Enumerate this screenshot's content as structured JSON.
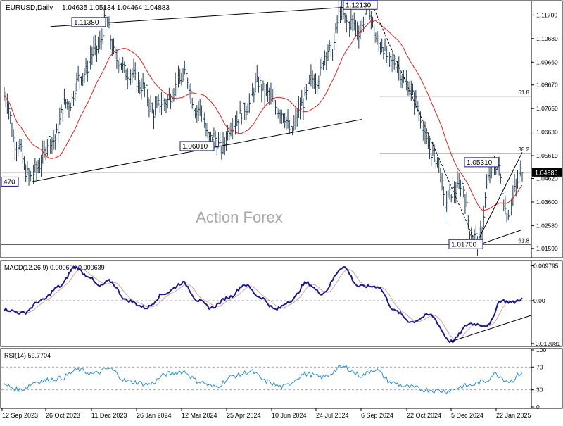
{
  "chart_data": {
    "type": "line",
    "symbol": "EURUSD",
    "timeframe": "Daily",
    "ohlc_header": [
      "1.04635",
      "1.05134",
      "1.04464",
      "1.04883"
    ],
    "watermark": "Action Forex",
    "x_labels": [
      "12 Sep 2023",
      "26 Oct 2023",
      "11 Dec 2023",
      "26 Jan 2024",
      "12 Mar 2024",
      "25 Apr 2024",
      "10 Jun 2024",
      "24 Jul 2024",
      "6 Sep 2024",
      "22 Oct 2024",
      "5 Dec 2024",
      "22 Jan 2025"
    ],
    "price_axis": {
      "ylim": [
        1.0128,
        1.1223
      ],
      "ticks": [
        "1.11700",
        "1.10680",
        "1.09660",
        "1.08670",
        "1.07650",
        "1.06630",
        "1.05610",
        "1.04620",
        "1.03600",
        "1.02580",
        "1.01590"
      ],
      "current_price": "1.04883"
    },
    "price_anchors": [
      {
        "i": 0,
        "v": 1.082
      },
      {
        "i": 8,
        "v": 1.062
      },
      {
        "i": 14,
        "v": 1.05
      },
      {
        "i": 18,
        "v": 1.047
      },
      {
        "i": 30,
        "v": 1.062
      },
      {
        "i": 42,
        "v": 1.08
      },
      {
        "i": 52,
        "v": 1.093
      },
      {
        "i": 62,
        "v": 1.105
      },
      {
        "i": 66,
        "v": 1.1138
      },
      {
        "i": 74,
        "v": 1.096
      },
      {
        "i": 86,
        "v": 1.089
      },
      {
        "i": 98,
        "v": 1.076
      },
      {
        "i": 108,
        "v": 1.082
      },
      {
        "i": 116,
        "v": 1.091
      },
      {
        "i": 126,
        "v": 1.076
      },
      {
        "i": 134,
        "v": 1.064
      },
      {
        "i": 140,
        "v": 1.0601
      },
      {
        "i": 152,
        "v": 1.073
      },
      {
        "i": 166,
        "v": 1.087
      },
      {
        "i": 176,
        "v": 1.078
      },
      {
        "i": 186,
        "v": 1.068
      },
      {
        "i": 200,
        "v": 1.088
      },
      {
        "i": 212,
        "v": 1.102
      },
      {
        "i": 218,
        "v": 1.117
      },
      {
        "i": 230,
        "v": 1.111
      },
      {
        "i": 236,
        "v": 1.119
      },
      {
        "i": 244,
        "v": 1.103
      },
      {
        "i": 254,
        "v": 1.095
      },
      {
        "i": 266,
        "v": 1.082
      },
      {
        "i": 274,
        "v": 1.062
      },
      {
        "i": 282,
        "v": 1.052
      },
      {
        "i": 286,
        "v": 1.036
      },
      {
        "i": 296,
        "v": 1.044
      },
      {
        "i": 304,
        "v": 1.0215
      },
      {
        "i": 308,
        "v": 1.018
      },
      {
        "i": 314,
        "v": 1.046
      },
      {
        "i": 320,
        "v": 1.0531
      },
      {
        "i": 326,
        "v": 1.03
      },
      {
        "i": 332,
        "v": 1.043
      },
      {
        "i": 336,
        "v": 1.04883
      }
    ],
    "annotations": [
      {
        "text": "1.11380",
        "price": 1.1138
      },
      {
        "text": "1.12130",
        "price": 1.1213
      },
      {
        "text": "1.06010",
        "price": 1.0601
      },
      {
        "text": "1.05310",
        "price": 1.0531
      },
      {
        "text": "1.01760",
        "price": 1.0176
      },
      {
        "text": "470",
        "price": 1.0447
      }
    ],
    "fib_levels": [
      {
        "text": "61.8",
        "price": 1.0818
      },
      {
        "text": "38.2",
        "price": 1.057
      },
      {
        "text": "61.8",
        "price": 1.0176
      }
    ],
    "macd": {
      "label": "MACD(12,26,9) 0.000604 0.000639",
      "ylim": [
        -0.0125,
        0.0105
      ],
      "ticks": [
        "0.009795",
        "0.00",
        "-0.012081"
      ],
      "anchors": [
        {
          "i": 0,
          "v": -0.0025
        },
        {
          "i": 12,
          "v": -0.0035
        },
        {
          "i": 24,
          "v": 0.0
        },
        {
          "i": 36,
          "v": 0.004
        },
        {
          "i": 46,
          "v": 0.0095
        },
        {
          "i": 54,
          "v": 0.007
        },
        {
          "i": 62,
          "v": 0.004
        },
        {
          "i": 68,
          "v": 0.0055
        },
        {
          "i": 80,
          "v": 0.0
        },
        {
          "i": 92,
          "v": -0.002
        },
        {
          "i": 104,
          "v": 0.002
        },
        {
          "i": 116,
          "v": 0.005
        },
        {
          "i": 126,
          "v": 0.0
        },
        {
          "i": 134,
          "v": -0.002
        },
        {
          "i": 146,
          "v": 0.001
        },
        {
          "i": 156,
          "v": 0.0045
        },
        {
          "i": 166,
          "v": 0.001
        },
        {
          "i": 176,
          "v": -0.0025
        },
        {
          "i": 186,
          "v": 0.0
        },
        {
          "i": 196,
          "v": 0.005
        },
        {
          "i": 206,
          "v": 0.002
        },
        {
          "i": 220,
          "v": 0.0095
        },
        {
          "i": 230,
          "v": 0.004
        },
        {
          "i": 242,
          "v": 0.004
        },
        {
          "i": 254,
          "v": -0.003
        },
        {
          "i": 264,
          "v": -0.006
        },
        {
          "i": 276,
          "v": -0.004
        },
        {
          "i": 290,
          "v": -0.0115
        },
        {
          "i": 302,
          "v": -0.0065
        },
        {
          "i": 314,
          "v": -0.007
        },
        {
          "i": 322,
          "v": 0.0
        },
        {
          "i": 330,
          "v": -0.0005
        },
        {
          "i": 336,
          "v": 0.0006
        }
      ]
    },
    "rsi": {
      "label": "RSI(14) 59.7704",
      "ylim": [
        0,
        100
      ],
      "ticks": [
        "100",
        "70",
        "30",
        "0"
      ],
      "levels": [
        70,
        30
      ],
      "anchors": [
        {
          "i": 0,
          "v": 38
        },
        {
          "i": 10,
          "v": 30
        },
        {
          "i": 22,
          "v": 45
        },
        {
          "i": 36,
          "v": 50
        },
        {
          "i": 48,
          "v": 65
        },
        {
          "i": 58,
          "v": 58
        },
        {
          "i": 68,
          "v": 67
        },
        {
          "i": 80,
          "v": 45
        },
        {
          "i": 94,
          "v": 40
        },
        {
          "i": 106,
          "v": 58
        },
        {
          "i": 116,
          "v": 62
        },
        {
          "i": 126,
          "v": 45
        },
        {
          "i": 136,
          "v": 35
        },
        {
          "i": 150,
          "v": 55
        },
        {
          "i": 160,
          "v": 62
        },
        {
          "i": 170,
          "v": 45
        },
        {
          "i": 180,
          "v": 35
        },
        {
          "i": 196,
          "v": 58
        },
        {
          "i": 206,
          "v": 52
        },
        {
          "i": 220,
          "v": 70
        },
        {
          "i": 232,
          "v": 55
        },
        {
          "i": 240,
          "v": 66
        },
        {
          "i": 252,
          "v": 42
        },
        {
          "i": 262,
          "v": 35
        },
        {
          "i": 274,
          "v": 30
        },
        {
          "i": 286,
          "v": 28
        },
        {
          "i": 300,
          "v": 37
        },
        {
          "i": 312,
          "v": 45
        },
        {
          "i": 318,
          "v": 58
        },
        {
          "i": 328,
          "v": 45
        },
        {
          "i": 336,
          "v": 59.77
        }
      ]
    }
  }
}
